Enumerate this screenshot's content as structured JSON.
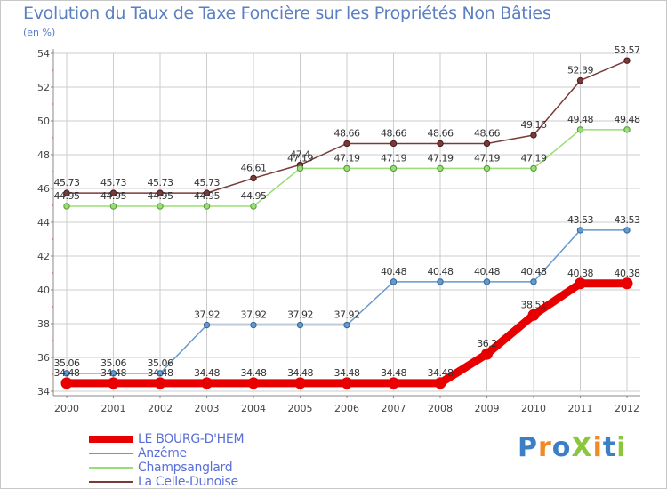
{
  "title": "Evolution du Taux de Taxe Foncière sur les Propriétés Non Bâties",
  "unit_label": "(en %)",
  "brand": "ProXiti",
  "colors": {
    "title": "#5a7fc2",
    "axis": "#888888",
    "grid": "#cccccc",
    "legend_text": "#5a6fd8"
  },
  "chart_data": {
    "type": "line",
    "title": "Evolution du Taux de Taxe Foncière sur les Propriétés Non Bâties",
    "ylabel": "(en %)",
    "xlabel": "",
    "ylim": [
      34,
      54
    ],
    "yticks": [
      34,
      36,
      38,
      40,
      42,
      44,
      46,
      48,
      50,
      52,
      54
    ],
    "grid": true,
    "legend_position": "bottom-left",
    "categories": [
      "2000",
      "2001",
      "2002",
      "2003",
      "2004",
      "2005",
      "2006",
      "2007",
      "2008",
      "2009",
      "2010",
      "2011",
      "2012"
    ],
    "series": [
      {
        "name": "LE BOURG-D'HEM",
        "color": "#e80000",
        "marker_edge": "#cc0000",
        "values": [
          34.48,
          34.48,
          34.48,
          34.48,
          34.48,
          34.48,
          34.48,
          34.48,
          34.48,
          36.2,
          38.51,
          40.38,
          40.38
        ],
        "labels": [
          "34.48",
          "34.48",
          "34.48",
          "34.48",
          "34.48",
          "34.48",
          "34.48",
          "34.48",
          "34.48",
          "36.2",
          "38.51",
          "40.38",
          "40.38"
        ]
      },
      {
        "name": "Anzême",
        "color": "#6699cc",
        "marker_edge": "#336699",
        "values": [
          35.06,
          35.06,
          35.06,
          37.92,
          37.92,
          37.92,
          37.92,
          40.48,
          40.48,
          40.48,
          40.48,
          43.53,
          43.53
        ],
        "labels": [
          "35.06",
          "35.06",
          "35.06",
          "37.92",
          "37.92",
          "37.92",
          "37.92",
          "40.48",
          "40.48",
          "40.48",
          "40.48",
          "43.53",
          "43.53"
        ]
      },
      {
        "name": "Champsanglard",
        "color": "#99dd77",
        "marker_edge": "#559933",
        "values": [
          44.95,
          44.95,
          44.95,
          44.95,
          44.95,
          47.19,
          47.19,
          47.19,
          47.19,
          47.19,
          47.19,
          49.48,
          49.48
        ],
        "labels": [
          "44.95",
          "44.95",
          "44.95",
          "44.95",
          "44.95",
          "47.19",
          "47.19",
          "47.19",
          "47.19",
          "47.19",
          "47.19",
          "49.48",
          "49.48"
        ]
      },
      {
        "name": "La Celle-Dunoise",
        "color": "#7a3a3a",
        "marker_edge": "#4a1a1a",
        "values": [
          45.73,
          45.73,
          45.73,
          45.73,
          46.61,
          47.4,
          48.66,
          48.66,
          48.66,
          48.66,
          49.16,
          52.39,
          53.57
        ],
        "labels": [
          "45.73",
          "45.73",
          "45.73",
          "45.73",
          "46.61",
          "47.4",
          "48.66",
          "48.66",
          "48.66",
          "48.66",
          "49.16",
          "52.39",
          "53.57"
        ]
      }
    ]
  }
}
